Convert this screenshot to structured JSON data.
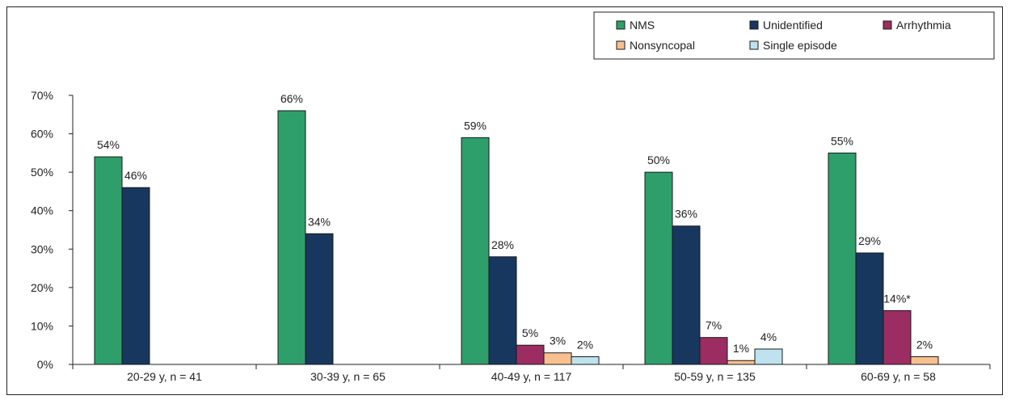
{
  "chart_data": {
    "type": "bar",
    "categories": [
      "20-29 y, n = 41",
      "30-39 y, n = 65",
      "40-49 y, n = 117",
      "50-59 y, n = 135",
      "60-69 y, n = 58"
    ],
    "series": [
      {
        "name": "NMS",
        "color": "#2e9e6b",
        "values": [
          54,
          66,
          59,
          50,
          55
        ],
        "labels": [
          "54%",
          "66%",
          "59%",
          "50%",
          "55%"
        ]
      },
      {
        "name": "Unidentified",
        "color": "#17375e",
        "values": [
          46,
          34,
          28,
          36,
          29
        ],
        "labels": [
          "46%",
          "34%",
          "28%",
          "36%",
          "29%"
        ]
      },
      {
        "name": "Arrhythmia",
        "color": "#9b2d62",
        "values": [
          null,
          null,
          5,
          7,
          14
        ],
        "labels": [
          "",
          "",
          "5%",
          "7%",
          "14%*"
        ]
      },
      {
        "name": "Nonsyncopal",
        "color": "#f9c08f",
        "values": [
          null,
          null,
          3,
          1,
          2
        ],
        "labels": [
          "",
          "",
          "3%",
          "1%",
          "2%"
        ]
      },
      {
        "name": "Single episode",
        "color": "#bfe3ee",
        "values": [
          null,
          null,
          2,
          4,
          null
        ],
        "labels": [
          "",
          "",
          "2%",
          "4%",
          ""
        ]
      }
    ],
    "y_ticks": [
      "0%",
      "10%",
      "20%",
      "30%",
      "40%",
      "50%",
      "60%",
      "70%"
    ],
    "ylim": [
      0,
      70
    ],
    "legend_position": "top-right",
    "grid": false
  }
}
